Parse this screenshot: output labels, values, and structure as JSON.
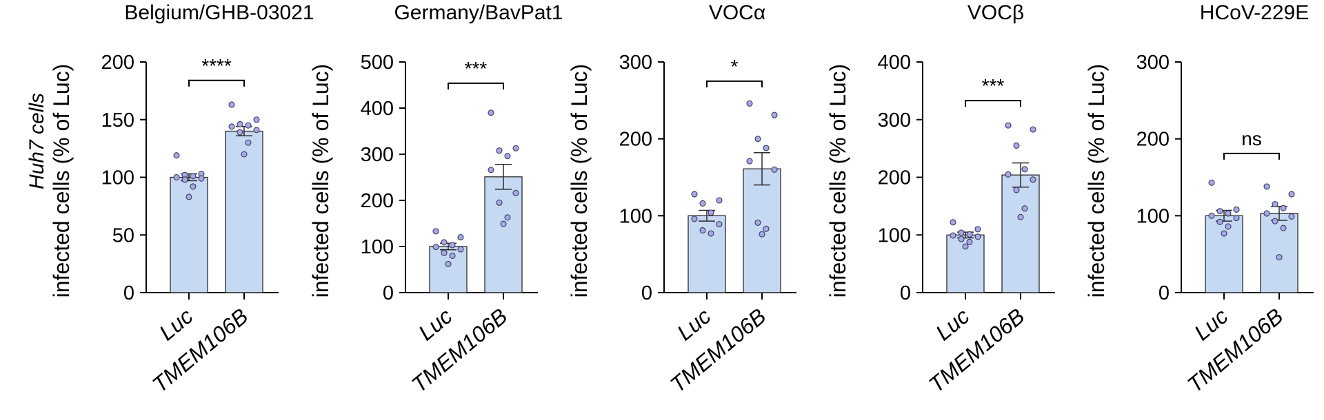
{
  "figure": {
    "row_label": "Huh7 cells",
    "colors": {
      "bar_fill": "#c6d9f3",
      "bar_stroke": "#2b2b2b",
      "point_fill": "#a7a9e6",
      "point_stroke": "#3a3a5c",
      "axis": "#000000"
    }
  },
  "chart_data": [
    {
      "type": "bar",
      "title": "Belgium/GHB-03021",
      "ylabel": "infected cells (% of Luc)",
      "ylim": [
        0,
        200
      ],
      "yticks": [
        0,
        50,
        100,
        150,
        200
      ],
      "categories": [
        "Luc",
        "TMEM106B"
      ],
      "values": [
        100,
        140
      ],
      "sem": [
        3,
        4
      ],
      "points": [
        [
          119,
          103,
          102,
          101,
          100,
          99,
          98,
          92,
          83
        ],
        [
          163,
          150,
          146,
          145,
          144,
          141,
          139,
          130,
          120
        ]
      ],
      "significance": "****",
      "significance_y": 184
    },
    {
      "type": "bar",
      "title": "Germany/BavPat1",
      "ylabel": "infected cells (% of Luc)",
      "ylim": [
        0,
        500
      ],
      "yticks": [
        0,
        100,
        200,
        300,
        400,
        500
      ],
      "categories": [
        "Luc",
        "TMEM106B"
      ],
      "values": [
        100,
        251
      ],
      "sem": [
        7,
        27
      ],
      "points": [
        [
          133,
          120,
          109,
          103,
          99,
          94,
          86,
          80,
          62
        ],
        [
          390,
          313,
          308,
          296,
          266,
          216,
          195,
          163,
          149
        ]
      ],
      "significance": "***",
      "significance_y": 454
    },
    {
      "type": "bar",
      "title": "VOCα",
      "ylabel": "infected cells (% of Luc)",
      "ylim": [
        0,
        300
      ],
      "yticks": [
        0,
        100,
        200,
        300
      ],
      "categories": [
        "Luc",
        "TMEM106B"
      ],
      "values": [
        100,
        161
      ],
      "sem": [
        7,
        21
      ],
      "points": [
        [
          128,
          120,
          116,
          104,
          96,
          89,
          81,
          77
        ],
        [
          246,
          231,
          200,
          188,
          171,
          160,
          91,
          83,
          76
        ]
      ],
      "significance": "*",
      "significance_y": 275
    },
    {
      "type": "bar",
      "title": "VOCβ",
      "ylabel": "infected cells (% of Luc)",
      "ylim": [
        0,
        400
      ],
      "yticks": [
        0,
        100,
        200,
        300,
        400
      ],
      "categories": [
        "Luc",
        "TMEM106B"
      ],
      "values": [
        100,
        204
      ],
      "sem": [
        5,
        21
      ],
      "points": [
        [
          122,
          110,
          104,
          101,
          99,
          97,
          93,
          88,
          80
        ],
        [
          290,
          283,
          255,
          214,
          205,
          196,
          178,
          146,
          131
        ]
      ],
      "significance": "***",
      "significance_y": 333
    },
    {
      "type": "bar",
      "title": "HCoV-229E",
      "ylabel": "infected cells (% of Luc)",
      "ylim": [
        0,
        300
      ],
      "yticks": [
        0,
        100,
        200,
        300
      ],
      "categories": [
        "Luc",
        "TMEM106B"
      ],
      "values": [
        100,
        103
      ],
      "sem": [
        7,
        9
      ],
      "points": [
        [
          143,
          108,
          106,
          103,
          100,
          97,
          92,
          86,
          77
        ],
        [
          138,
          128,
          115,
          110,
          103,
          99,
          93,
          84,
          46
        ]
      ],
      "significance": "ns",
      "significance_y": 181
    }
  ]
}
